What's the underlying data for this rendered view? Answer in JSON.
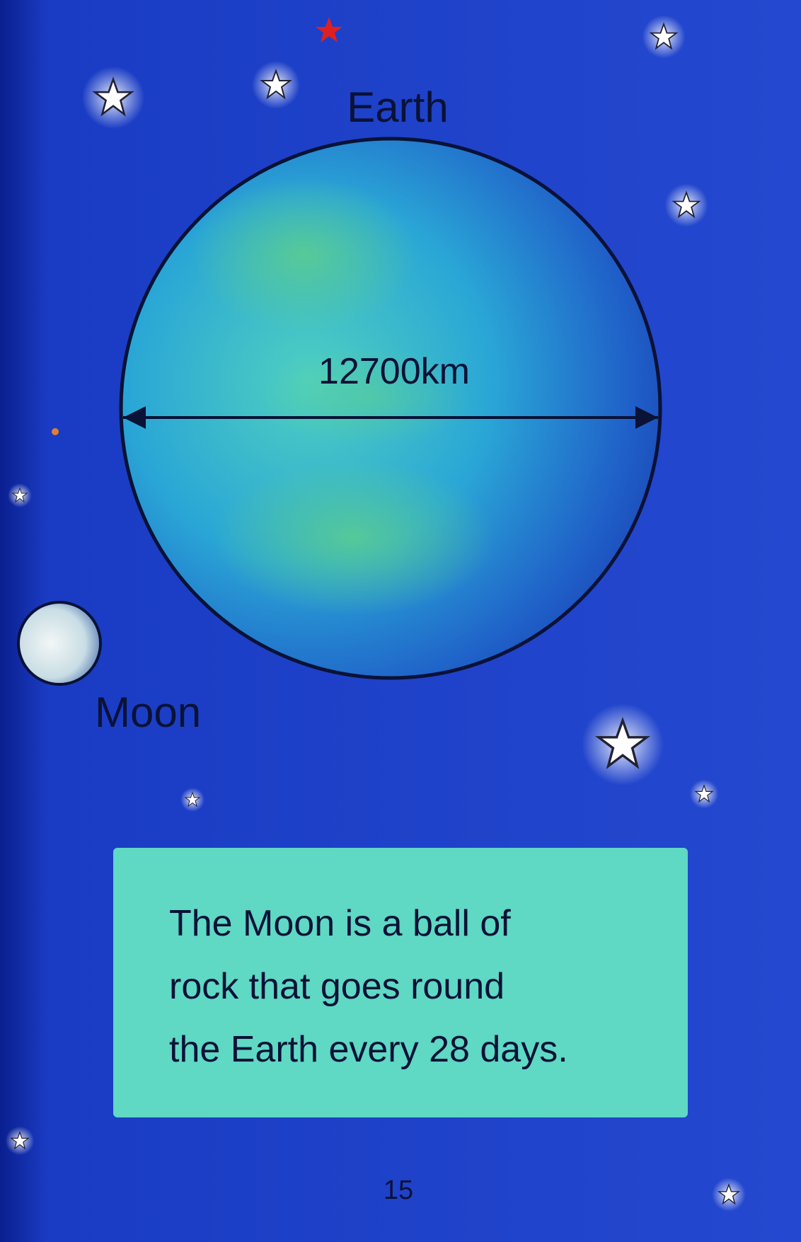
{
  "labels": {
    "earth": "Earth",
    "diameter": "12700km",
    "moon": "Moon"
  },
  "text_box": {
    "lines": [
      "The Moon is a ball of",
      "rock that goes round",
      "the Earth every 28 days."
    ]
  },
  "page_number": "15"
}
